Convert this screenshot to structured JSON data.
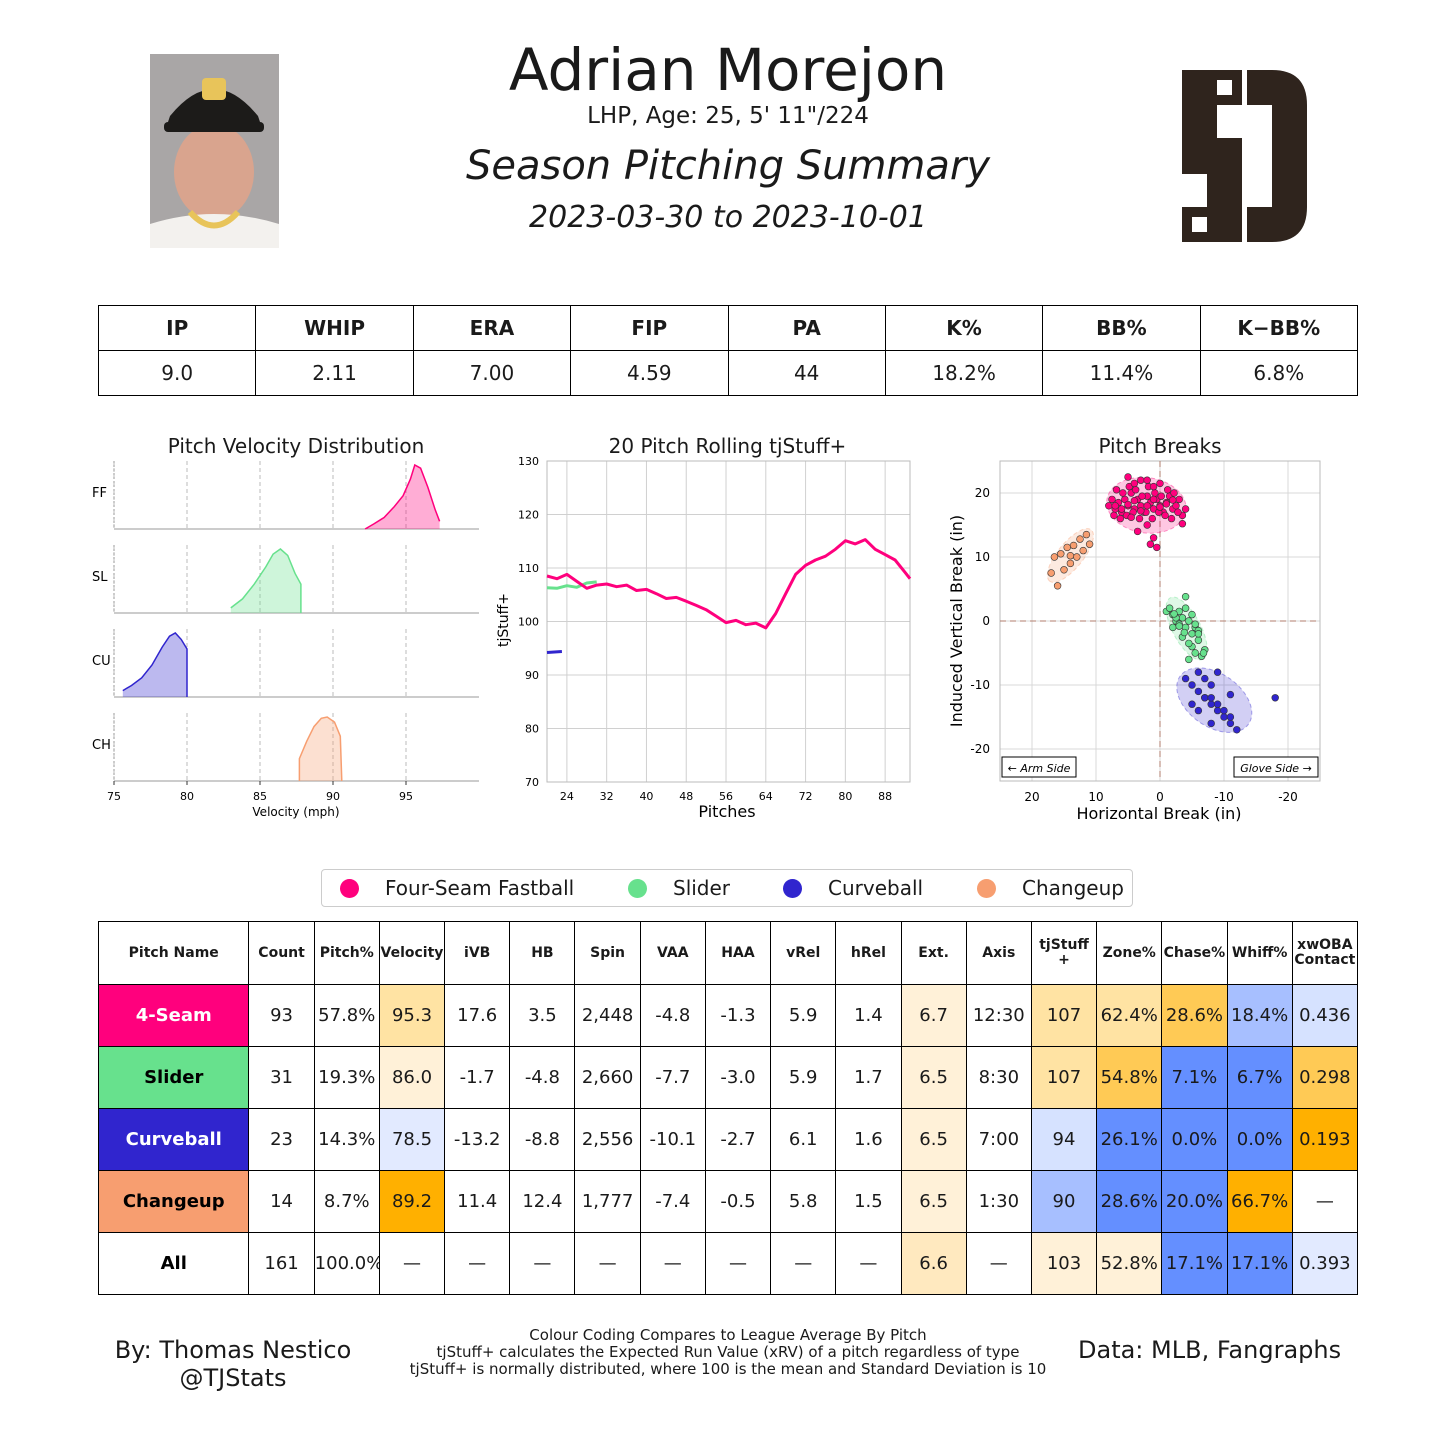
{
  "player": {
    "name": "Adrian Morejon",
    "bio": "LHP, Age: 25, 5' 11\"/224",
    "subtitle": "Season Pitching Summary",
    "date_range": "2023-03-30 to 2023-10-01",
    "team_logo_text": "SD"
  },
  "season_stats": {
    "headers": [
      "IP",
      "WHIP",
      "ERA",
      "FIP",
      "PA",
      "K%",
      "BB%",
      "K−BB%"
    ],
    "values": [
      "9.0",
      "2.11",
      "7.00",
      "4.59",
      "44",
      "18.2%",
      "11.4%",
      "6.8%"
    ]
  },
  "colors": {
    "four_seam": "#FF007D",
    "slider": "#67E18D",
    "curveball": "#3025CE",
    "changeup": "#F79E70",
    "heat_high": "#FFB000",
    "heat_mid_high": "#FFCA55",
    "heat_mid": "#FFE3A3",
    "heat_light": "#FFF1D8",
    "cool_low": "#648FFF",
    "cool_mid": "#A7BFFF",
    "cool_light": "#D6E2FF",
    "neutral": "#FFFFFF"
  },
  "chart_data": [
    {
      "type": "area",
      "title": "Pitch Velocity Distribution",
      "xlabel": "Velocity (mph)",
      "xlim": [
        75,
        100
      ],
      "x_ticks": [
        "75",
        "80",
        "85",
        "90",
        "95"
      ],
      "series": [
        {
          "name": "FF",
          "min": 92.2,
          "peak": 95.5,
          "max": 97.3,
          "y_curve": [
            [
              92.2,
              0.0
            ],
            [
              92.8,
              0.08
            ],
            [
              93.5,
              0.18
            ],
            [
              94.2,
              0.35
            ],
            [
              94.8,
              0.52
            ],
            [
              95.3,
              0.78
            ],
            [
              95.6,
              1.0
            ],
            [
              96.0,
              0.95
            ],
            [
              96.5,
              0.65
            ],
            [
              97.0,
              0.3
            ],
            [
              97.3,
              0.12
            ]
          ]
        },
        {
          "name": "SL",
          "min": 83.0,
          "peak": 86.4,
          "max": 87.8,
          "y_curve": [
            [
              83.0,
              0.08
            ],
            [
              83.8,
              0.22
            ],
            [
              84.6,
              0.45
            ],
            [
              85.4,
              0.72
            ],
            [
              85.9,
              0.92
            ],
            [
              86.4,
              1.0
            ],
            [
              86.9,
              0.9
            ],
            [
              87.4,
              0.62
            ],
            [
              87.8,
              0.45
            ],
            [
              87.8,
              0.0
            ]
          ]
        },
        {
          "name": "CU",
          "min": 75.6,
          "peak": 79.0,
          "max": 80.0,
          "y_curve": [
            [
              75.6,
              0.1
            ],
            [
              76.2,
              0.18
            ],
            [
              76.9,
              0.3
            ],
            [
              77.6,
              0.5
            ],
            [
              78.3,
              0.78
            ],
            [
              78.8,
              0.95
            ],
            [
              79.2,
              1.0
            ],
            [
              79.6,
              0.9
            ],
            [
              80.0,
              0.75
            ],
            [
              80.0,
              0.0
            ]
          ]
        },
        {
          "name": "CH",
          "min": 87.7,
          "peak": 89.5,
          "max": 90.6,
          "y_curve": [
            [
              87.7,
              0.0
            ],
            [
              87.7,
              0.35
            ],
            [
              88.2,
              0.62
            ],
            [
              88.7,
              0.85
            ],
            [
              89.2,
              0.98
            ],
            [
              89.6,
              1.0
            ],
            [
              90.1,
              0.92
            ],
            [
              90.5,
              0.7
            ],
            [
              90.6,
              0.0
            ]
          ]
        }
      ]
    },
    {
      "type": "line",
      "title": "20 Pitch Rolling tjStuff+",
      "xlabel": "Pitches",
      "ylabel": "tjStuff+",
      "xlim": [
        20,
        93
      ],
      "ylim": [
        70,
        130
      ],
      "x_ticks": [
        "24",
        "32",
        "40",
        "48",
        "56",
        "64",
        "72",
        "80",
        "88"
      ],
      "y_ticks": [
        "70",
        "80",
        "90",
        "100",
        "110",
        "120",
        "130"
      ],
      "series": [
        {
          "name": "Four-Seam Fastball",
          "x": [
            20,
            22,
            24,
            26,
            28,
            30,
            32,
            34,
            36,
            38,
            40,
            42,
            44,
            46,
            48,
            50,
            52,
            54,
            56,
            58,
            60,
            62,
            64,
            66,
            68,
            70,
            72,
            74,
            76,
            78,
            80,
            82,
            84,
            86,
            88,
            90,
            92,
            93
          ],
          "y": [
            108.5,
            108,
            108.8,
            107.5,
            106.2,
            106.8,
            107,
            106.5,
            106.8,
            105.8,
            106,
            105.2,
            104.3,
            104.5,
            103.8,
            103,
            102.2,
            101,
            99.8,
            100.2,
            99.4,
            99.7,
            98.8,
            101.5,
            105.2,
            108.8,
            110.5,
            111.5,
            112.2,
            113.5,
            115.1,
            114.5,
            115.3,
            113.5,
            112.5,
            111.5,
            109.2,
            108
          ]
        },
        {
          "name": "Slider",
          "x": [
            20,
            22,
            24,
            26,
            28,
            30
          ],
          "y": [
            106.3,
            106.2,
            106.7,
            106.4,
            107.2,
            107.4
          ]
        },
        {
          "name": "Curveball",
          "x": [
            20,
            23
          ],
          "y": [
            94.2,
            94.4
          ]
        }
      ]
    },
    {
      "type": "scatter",
      "title": "Pitch Breaks",
      "xlabel": "Horizontal Break (in)",
      "ylabel": "Induced Vertical Break (in)",
      "xlim": [
        25,
        -25
      ],
      "ylim": [
        -25,
        25
      ],
      "x_ticks": [
        "20",
        "10",
        "0",
        "-10",
        "-20"
      ],
      "y_ticks": [
        "20",
        "10",
        "0",
        "-10",
        "-20"
      ],
      "annotations": [
        "← Arm Side",
        "Glove Side →"
      ],
      "series": [
        {
          "name": "Four-Seam Fastball",
          "x": [
            8,
            7.5,
            7,
            6.5,
            6,
            5.5,
            5,
            4.5,
            4,
            3.5,
            3,
            2.5,
            2,
            1.5,
            1,
            0.5,
            0,
            -0.5,
            -1,
            -1.5,
            -2,
            -2.5,
            -3,
            -3.5,
            -4,
            7.2,
            6.2,
            5.2,
            4.2,
            3.2,
            2.2,
            1.2,
            0.2,
            -0.8,
            -1.8,
            -2.8,
            6.8,
            5.8,
            4.8,
            3.8,
            2.8,
            1.8,
            0.8,
            -0.2,
            -1.2,
            -2.2,
            5,
            4,
            3,
            2,
            1,
            0,
            7,
            6,
            5,
            4,
            3,
            2,
            1,
            0,
            -1,
            -2,
            2,
            1,
            3.5,
            1.5,
            0.5,
            -3.5,
            4.5
          ],
          "y": [
            18,
            19,
            17.5,
            18.5,
            17,
            19,
            18,
            20,
            17.5,
            19,
            18,
            17,
            19.5,
            18.5,
            17.5,
            19,
            18,
            17,
            18.5,
            19.5,
            17.5,
            18,
            19,
            16.5,
            17.5,
            16.5,
            16,
            16.5,
            17,
            16,
            17,
            16,
            17,
            16.5,
            16,
            17,
            20.5,
            20,
            21,
            20.5,
            19.5,
            21,
            20,
            19.5,
            20.5,
            20,
            22.5,
            21.5,
            22,
            22,
            21,
            21.5,
            18,
            17.5,
            18.2,
            18.8,
            17.2,
            18,
            19,
            17.8,
            18.3,
            18.9,
            15,
            13,
            14,
            12,
            11.5,
            15.2,
            16.2
          ]
        },
        {
          "name": "Slider",
          "x": [
            -1,
            -1.5,
            -2,
            -2.5,
            -3,
            -3.5,
            -4,
            -4.5,
            -5,
            -5.5,
            -6,
            -2,
            -3,
            -4,
            -5,
            -6,
            -2.5,
            -3.5,
            -4.5,
            -5.5,
            -6.5,
            -7,
            -4,
            -5,
            -6,
            -4.5,
            -3,
            -5.5,
            -6.8,
            -3.8,
            -2.2
          ],
          "y": [
            1.5,
            2,
            1,
            0,
            1.5,
            0.5,
            -1,
            0,
            -2,
            -1,
            -3,
            -1,
            -0.5,
            2,
            -4,
            -1.5,
            0.5,
            -2.5,
            -3.5,
            -5,
            -5.5,
            -4.5,
            3.8,
            1,
            -2,
            -6,
            -0.8,
            -0.5,
            -5,
            -1.8,
            1.1
          ]
        },
        {
          "name": "Curveball",
          "x": [
            -4,
            -5,
            -6,
            -7,
            -8,
            -9,
            -10,
            -11,
            -12,
            -5,
            -6,
            -7,
            -8,
            -9,
            -10,
            -11,
            -6,
            -7,
            -8,
            -9,
            -18,
            -11,
            -8
          ],
          "y": [
            -9,
            -10,
            -11,
            -12,
            -13,
            -14,
            -15,
            -16,
            -17,
            -13,
            -14,
            -12,
            -12,
            -13,
            -14,
            -15,
            -8,
            -9,
            -10,
            -8,
            -12,
            -11.5,
            -16
          ]
        },
        {
          "name": "Changeup",
          "x": [
            16,
            15,
            14,
            13,
            12,
            11,
            15.5,
            14.5,
            13.5,
            12.5,
            11.5,
            16.5,
            17,
            14
          ],
          "y": [
            5.5,
            8,
            9,
            10,
            11,
            12,
            10.5,
            11.5,
            11.8,
            12.8,
            13.5,
            10,
            7.5,
            10.2
          ]
        }
      ]
    }
  ],
  "legend": [
    "Four-Seam Fastball",
    "Slider",
    "Curveball",
    "Changeup"
  ],
  "pitch_table": {
    "headers": [
      "Pitch Name",
      "Count",
      "Pitch%",
      "Velocity",
      "iVB",
      "HB",
      "Spin",
      "VAA",
      "HAA",
      "vRel",
      "hRel",
      "Ext.",
      "Axis",
      "tjStuff +",
      "Zone%",
      "Chase%",
      "Whiff%",
      "xwOBA Contact"
    ],
    "rows": [
      {
        "name": "4-Seam",
        "name_bg": "#FF007D",
        "name_color": "#FFFFFF",
        "cells": [
          "93",
          "57.8%",
          "95.3",
          "17.6",
          "3.5",
          "2,448",
          "-4.8",
          "-1.3",
          "5.9",
          "1.4",
          "6.7",
          "12:30",
          "107",
          "62.4%",
          "28.6%",
          "18.4%",
          "0.436"
        ],
        "bgs": [
          "#FFFFFF",
          "#FFFFFF",
          "#FFE3A3",
          "#FFFFFF",
          "#FFFFFF",
          "#FFFFFF",
          "#FFFFFF",
          "#FFFFFF",
          "#FFFFFF",
          "#FFFFFF",
          "#FFF1D8",
          "#FFFFFF",
          "#FFE3A3",
          "#FFE3A3",
          "#FFCA55",
          "#A7BFFF",
          "#D6E2FF"
        ]
      },
      {
        "name": "Slider",
        "name_bg": "#67E18D",
        "name_color": "#000000",
        "cells": [
          "31",
          "19.3%",
          "86.0",
          "-1.7",
          "-4.8",
          "2,660",
          "-7.7",
          "-3.0",
          "5.9",
          "1.7",
          "6.5",
          "8:30",
          "107",
          "54.8%",
          "7.1%",
          "6.7%",
          "0.298"
        ],
        "bgs": [
          "#FFFFFF",
          "#FFFFFF",
          "#FFF1D8",
          "#FFFFFF",
          "#FFFFFF",
          "#FFFFFF",
          "#FFFFFF",
          "#FFFFFF",
          "#FFFFFF",
          "#FFFFFF",
          "#FFF1D8",
          "#FFFFFF",
          "#FFE3A3",
          "#FFCA55",
          "#648FFF",
          "#648FFF",
          "#FFCA55"
        ]
      },
      {
        "name": "Curveball",
        "name_bg": "#3025CE",
        "name_color": "#FFFFFF",
        "cells": [
          "23",
          "14.3%",
          "78.5",
          "-13.2",
          "-8.8",
          "2,556",
          "-10.1",
          "-2.7",
          "6.1",
          "1.6",
          "6.5",
          "7:00",
          "94",
          "26.1%",
          "0.0%",
          "0.0%",
          "0.193"
        ],
        "bgs": [
          "#FFFFFF",
          "#FFFFFF",
          "#E2EAFF",
          "#FFFFFF",
          "#FFFFFF",
          "#FFFFFF",
          "#FFFFFF",
          "#FFFFFF",
          "#FFFFFF",
          "#FFFFFF",
          "#FFF1D8",
          "#FFFFFF",
          "#D6E2FF",
          "#648FFF",
          "#648FFF",
          "#648FFF",
          "#FFB000"
        ]
      },
      {
        "name": "Changeup",
        "name_bg": "#F79E70",
        "name_color": "#000000",
        "cells": [
          "14",
          "8.7%",
          "89.2",
          "11.4",
          "12.4",
          "1,777",
          "-7.4",
          "-0.5",
          "5.8",
          "1.5",
          "6.5",
          "1:30",
          "90",
          "28.6%",
          "20.0%",
          "66.7%",
          "—"
        ],
        "bgs": [
          "#FFFFFF",
          "#FFFFFF",
          "#FFB000",
          "#FFFFFF",
          "#FFFFFF",
          "#FFFFFF",
          "#FFFFFF",
          "#FFFFFF",
          "#FFFFFF",
          "#FFFFFF",
          "#FFF1D8",
          "#FFFFFF",
          "#A7BFFF",
          "#648FFF",
          "#648FFF",
          "#FFB000",
          "#FFFFFF"
        ]
      },
      {
        "name": "All",
        "name_bg": "#FFFFFF",
        "name_color": "#000000",
        "cells": [
          "161",
          "100.0%",
          "—",
          "—",
          "—",
          "—",
          "—",
          "—",
          "—",
          "—",
          "6.6",
          "—",
          "103",
          "52.8%",
          "17.1%",
          "17.1%",
          "0.393"
        ],
        "bgs": [
          "#FFFFFF",
          "#FFFFFF",
          "#FFFFFF",
          "#FFFFFF",
          "#FFFFFF",
          "#FFFFFF",
          "#FFFFFF",
          "#FFFFFF",
          "#FFFFFF",
          "#FFFFFF",
          "#FFE9BF",
          "#FFFFFF",
          "#FFF1D8",
          "#FFF1D8",
          "#648FFF",
          "#648FFF",
          "#E2EAFF"
        ]
      }
    ]
  },
  "footer": {
    "author": "By: Thomas Nestico",
    "handle": "@TJStats",
    "note1": "Colour Coding Compares to League Average By Pitch",
    "note2": "tjStuff+ calculates the Expected Run Value (xRV) of a pitch regardless of type",
    "note3": "tjStuff+ is normally distributed, where 100 is the mean and Standard Deviation is 10",
    "source": "Data: MLB, Fangraphs"
  }
}
